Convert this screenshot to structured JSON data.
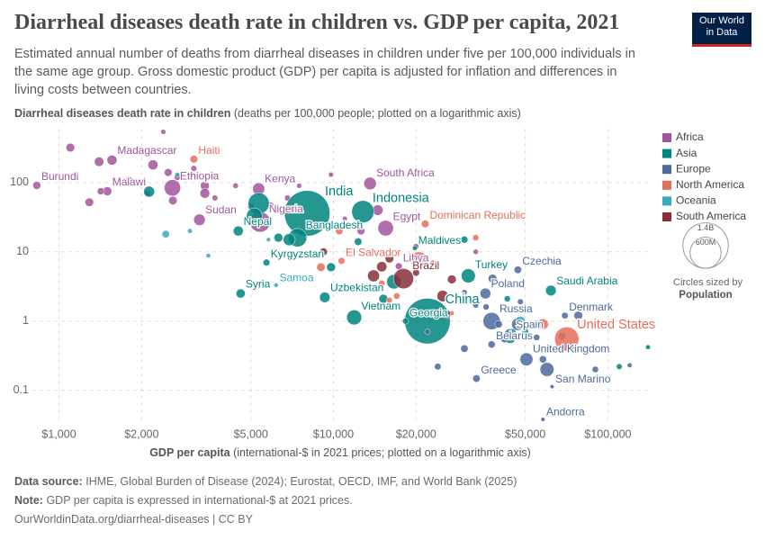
{
  "logo": [
    "Our World",
    "in Data"
  ],
  "footer": {
    "source_label": "Data source:",
    "source": "IHME, Global Burden of Disease (2024); Eurostat, OECD, IMF, and World Bank (2025)",
    "note_label": "Note:",
    "note": "GDP per capita is expressed in international-$ at 2021 prices.",
    "url": "OurWorldinData.org/diarrheal-diseases | CC BY"
  },
  "chart_data": {
    "type": "scatter",
    "title": "Diarrheal diseases death rate in children vs. GDP per capita, 2021",
    "subtitle": "Estimated annual number of deaths from diarrheal diseases in children under five per 100,000 individuals in the same age group. Gross domestic product (GDP) per capita is adjusted for inflation and differences in living costs between countries.",
    "y_label": "Diarrheal diseases death rate in children",
    "y_label_note": "(deaths per 100,000 people; plotted on a logarithmic axis)",
    "x_label": "GDP per capita",
    "x_label_note": "(international-$ in 2021 prices; plotted on a logarithmic axis)",
    "x_log": true,
    "y_log": true,
    "grid": true,
    "legend": "right",
    "xlim": [
      800,
      140000
    ],
    "xticks": [
      {
        "value": 1000,
        "label": "$1,000"
      },
      {
        "value": 2000,
        "label": "$2,000"
      },
      {
        "value": 5000,
        "label": "$5,000"
      },
      {
        "value": 10000,
        "label": "$10,000"
      },
      {
        "value": 20000,
        "label": "$20,000"
      },
      {
        "value": 50000,
        "label": "$50,000"
      },
      {
        "value": 100000,
        "label": "$100,000"
      }
    ],
    "ylim": [
      0.025,
      600
    ],
    "yticks": [
      0.1,
      1,
      10,
      100
    ],
    "size_legend": {
      "title": "Circles sized by",
      "variable": "Population",
      "values": [
        {
          "value": 1400,
          "label": "1.4B"
        },
        {
          "value": 600,
          "label": "600M"
        }
      ]
    },
    "series": [
      {
        "name": "Africa",
        "color": "#a2559c",
        "x": [
          5400,
          1560,
          830,
          1500,
          2590,
          5340,
          3250,
          13600,
          15500,
          17300,
          1100,
          1400,
          1800,
          2200,
          2400,
          2500,
          2700,
          3100,
          3400,
          3400,
          4400,
          5000,
          5900,
          6800,
          7500,
          9800,
          1290,
          1420,
          2100,
          2600,
          3700,
          11000,
          14500,
          20000,
          33000,
          12600
        ],
        "values": [
          27,
          211,
          91,
          75,
          84,
          81,
          29,
          97,
          22,
          6.2,
          320,
          200,
          110,
          180,
          540,
          140,
          120,
          160,
          90,
          70,
          90,
          45,
          47,
          60,
          90,
          130,
          52,
          75,
          70,
          55,
          60,
          30,
          40,
          12,
          10,
          20
        ],
        "sizes": [
          220,
          30,
          13,
          20,
          125,
          55,
          47,
          60,
          110,
          7,
          18,
          25,
          5,
          30,
          1,
          12,
          5,
          3,
          20,
          28,
          2,
          5,
          4,
          3,
          1,
          1,
          17,
          8,
          4,
          17,
          3,
          1,
          36,
          2,
          1.3,
          12
        ],
        "labels": [
          "Nigeria",
          "Madagascar",
          "Burundi",
          "Malawi",
          "Ethiopia",
          "Kenya",
          "Sudan",
          "South Africa",
          "Egypt",
          "Libya",
          null,
          null,
          null,
          null,
          null,
          null,
          null,
          null,
          null,
          null,
          null,
          null,
          null,
          null,
          null,
          null,
          null,
          null,
          null,
          null,
          null,
          null,
          null,
          null,
          null,
          null
        ]
      },
      {
        "name": "Asia",
        "color": "#00847e",
        "x": [
          8020,
          12800,
          7400,
          4500,
          19800,
          5700,
          4590,
          9300,
          31000,
          11900,
          22000,
          18300,
          62000,
          5340,
          2130,
          5150,
          6300,
          6900,
          12300,
          15200,
          9800,
          30000,
          50000,
          140000,
          110000,
          43000,
          44000,
          16600
        ],
        "values": [
          36,
          38,
          16,
          20,
          11.3,
          7,
          2.5,
          2.2,
          4.5,
          1.13,
          1.0,
          1.0,
          2.76,
          50,
          74,
          33,
          16,
          15,
          14,
          2.1,
          6,
          15,
          0.7,
          0.42,
          0.22,
          2.1,
          0.58,
          3.7
        ],
        "sizes": [
          1420,
          275,
          170,
          30,
          0.5,
          7,
          22,
          35,
          85,
          98,
          1420,
          3.7,
          36,
          240,
          40,
          115,
          20,
          54,
          11,
          20,
          20,
          8,
          5,
          0.6,
          3,
          4,
          51,
          90
        ],
        "labels": [
          "India",
          "Indonesia",
          "Bangladesh",
          "Nepal",
          "Maldives",
          "Kyrgyzstan",
          "Syria",
          "Uzbekistan",
          "Turkey",
          "Vietnam",
          "China",
          "Georgia",
          "Saudi Arabia",
          null,
          null,
          null,
          null,
          null,
          null,
          null,
          null,
          null,
          null,
          null,
          null,
          null,
          null,
          null
        ]
      },
      {
        "name": "Europe",
        "color": "#4c6a9c",
        "x": [
          47000,
          35800,
          37700,
          44000,
          37700,
          33200,
          50500,
          62600,
          69700,
          58000,
          24000,
          30000,
          33000,
          40000,
          42000,
          47000,
          55000,
          58000,
          60000,
          68000,
          78000,
          90000,
          120000,
          130000,
          48000,
          36000,
          38000,
          26000,
          22000,
          30000
        ],
        "values": [
          5.5,
          2.5,
          1.0,
          0.64,
          0.46,
          0.148,
          0.28,
          0.113,
          1.2,
          0.038,
          0.22,
          0.4,
          1.7,
          0.9,
          0.55,
          0.9,
          0.58,
          0.28,
          0.2,
          0.6,
          1.2,
          0.2,
          0.23,
          0.9,
          1.9,
          1.6,
          4.1,
          1.2,
          0.7,
          2.6
        ],
        "sizes": [
          10.5,
          38,
          144,
          47,
          9,
          10,
          67,
          0.03,
          6,
          0.08,
          6,
          10,
          3,
          10,
          9,
          60,
          5,
          9,
          83,
          10,
          18,
          5,
          0.6,
          5,
          3,
          4,
          19,
          4,
          2,
          2
        ],
        "labels": [
          "Czechia",
          "Poland",
          "Russia",
          "Spain",
          "Belarus",
          "Greece",
          "United Kingdom",
          "San Marino",
          "Denmark",
          "Andorra",
          null,
          null,
          null,
          null,
          null,
          null,
          null,
          null,
          null,
          null,
          null,
          null,
          null,
          null,
          null,
          null,
          null,
          null,
          null,
          null
        ]
      },
      {
        "name": "North America",
        "color": "#e56e5a",
        "x": [
          3100,
          21600,
          10700,
          70800,
          20500,
          9000,
          10500,
          15000,
          17000,
          33000,
          58000,
          27000,
          45000,
          23000,
          16000
        ],
        "values": [
          218,
          25.3,
          7.4,
          0.55,
          7.6,
          6,
          20,
          3.5,
          2.3,
          16,
          0.9,
          1.3,
          0.6,
          7,
          2.0
        ],
        "sizes": [
          11.5,
          11,
          6.3,
          335,
          127,
          17,
          10,
          5,
          5,
          4,
          38,
          0.3,
          0.5,
          0.5,
          2.8
        ],
        "labels": [
          "Haiti",
          "Dominican Republic",
          "El Salvador",
          "United States",
          null,
          null,
          null,
          null,
          null,
          null,
          null,
          null,
          null,
          null,
          null
        ]
      },
      {
        "name": "Oceania",
        "color": "#38aaba",
        "x": [
          6180,
          2450,
          2700,
          3000,
          3500,
          5800,
          48000,
          45000
        ],
        "values": [
          3.3,
          18,
          130,
          20,
          8.8,
          15,
          1.0,
          0.7
        ],
        "sizes": [
          0.2,
          10,
          0.7,
          0.7,
          0.3,
          0.1,
          26,
          5
        ],
        "labels": [
          "Samoa",
          null,
          null,
          null,
          null,
          null,
          null,
          null
        ]
      },
      {
        "name": "South America",
        "color": "#883039",
        "x": [
          18000,
          15000,
          25000,
          14000,
          9200,
          20000,
          26000,
          27000,
          16000
        ],
        "values": [
          4.1,
          6.1,
          2.3,
          4.5,
          10,
          5,
          1.3,
          4,
          8
        ],
        "sizes": [
          215,
          33,
          46,
          52,
          12,
          7,
          3.4,
          19,
          18
        ],
        "labels": [
          "Brazil",
          null,
          null,
          null,
          null,
          null,
          null,
          null,
          null
        ]
      }
    ]
  }
}
